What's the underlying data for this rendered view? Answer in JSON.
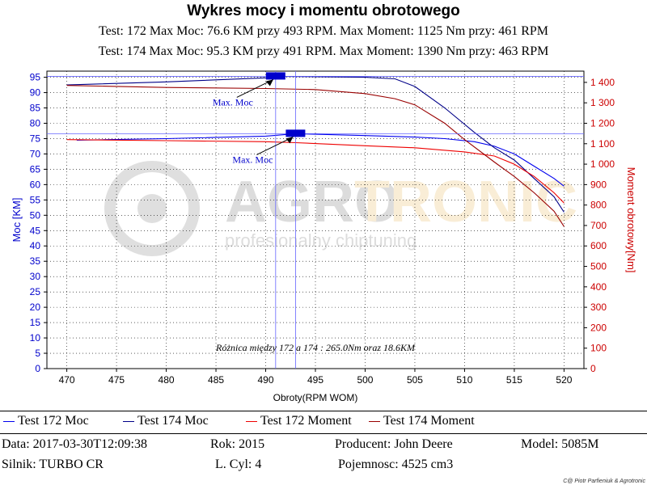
{
  "title": "Wykres mocy i momentu obrotowego",
  "subtitle1": "Test: 172 Max Moc: 76.6 KM przy 493 RPM. Max Moment: 1125 Nm przy: 461 RPM",
  "subtitle2": "Test: 174 Max Moc: 95.3 KM przy 491 RPM. Max Moment: 1390 Nm przy: 463 RPM",
  "watermark": {
    "brand_left": "AGRO",
    "brand_right": "TRONIC",
    "tagline": "profesionalny  chiptuning"
  },
  "colors": {
    "moc_172": "#0000ee",
    "moc_174": "#000088",
    "moment_172": "#ee0000",
    "moment_174": "#990000",
    "marker": "#0000cc"
  },
  "chart_data": {
    "type": "line",
    "xlabel": "Obroty(RPM WOM)",
    "ylabel": "Moc [KM]",
    "y2label": "Moment obrotowy[Nm]",
    "xlim": [
      468,
      522
    ],
    "ylim": [
      0,
      97
    ],
    "y2lim": [
      0,
      1455
    ],
    "x_ticks": [
      470,
      475,
      480,
      485,
      490,
      495,
      500,
      505,
      510,
      515,
      520
    ],
    "y_ticks": [
      0,
      5,
      10,
      15,
      20,
      25,
      30,
      35,
      40,
      45,
      50,
      55,
      60,
      65,
      70,
      75,
      80,
      85,
      90,
      95
    ],
    "y2_ticks": [
      0,
      100,
      200,
      300,
      400,
      500,
      600,
      700,
      800,
      900,
      1000,
      1100,
      1200,
      1300,
      1400
    ],
    "y2_tick_labels": [
      "0",
      "100",
      "200",
      "300",
      "400",
      "500",
      "600",
      "700",
      "800",
      "900",
      "1 000",
      "1 100",
      "1 200",
      "1 300",
      "1 400"
    ],
    "grid": true,
    "series": [
      {
        "name": "Test 172 Moc",
        "axis": "left",
        "x": [
          471,
          480,
          490,
          493,
          500,
          505,
          508,
          511,
          513,
          515,
          517,
          519,
          520
        ],
        "y": [
          74.5,
          75.0,
          75.8,
          76.6,
          76.0,
          75.5,
          75.0,
          74.0,
          72.5,
          70.0,
          66.0,
          62.0,
          59.5
        ]
      },
      {
        "name": "Test 174 Moc",
        "axis": "left",
        "x": [
          470,
          480,
          490,
          491,
          500,
          503,
          505,
          508,
          511,
          513,
          515,
          517,
          519,
          520
        ],
        "y": [
          92.5,
          93.5,
          94.8,
          95.3,
          95.0,
          94.5,
          92.0,
          85.0,
          77.0,
          72.0,
          68.0,
          62.0,
          56.0,
          51.0
        ]
      },
      {
        "name": "Test 172 Moment",
        "axis": "right",
        "x": [
          470,
          480,
          490,
          493,
          500,
          505,
          510,
          513,
          515,
          517,
          519,
          520
        ],
        "y": [
          1120,
          1115,
          1110,
          1105,
          1090,
          1080,
          1060,
          1040,
          1000,
          940,
          860,
          810
        ]
      },
      {
        "name": "Test 174 Moment",
        "axis": "right",
        "x": [
          470,
          480,
          490,
          495,
          500,
          503,
          505,
          508,
          510,
          513,
          515,
          517,
          519,
          520
        ],
        "y": [
          1385,
          1375,
          1370,
          1365,
          1345,
          1320,
          1290,
          1200,
          1120,
          1010,
          940,
          860,
          770,
          695
        ]
      }
    ],
    "markers": [
      {
        "label": "Max. Moc",
        "x": 491,
        "y": 95.3
      },
      {
        "label": "Max. Moc",
        "x": 493,
        "y": 76.6
      }
    ],
    "annotation": "Różnica między 172 a 174 : 265.0Nm oraz 18.6KM"
  },
  "legend": [
    {
      "label": "Test 172 Moc",
      "color": "#0000ee"
    },
    {
      "label": "Test 174 Moc",
      "color": "#000088"
    },
    {
      "label": "Test 172 Moment",
      "color": "#ee0000"
    },
    {
      "label": "Test 174 Moment",
      "color": "#990000"
    }
  ],
  "info": {
    "data": "Data: 2017-03-30T12:09:38",
    "rok": "Rok: 2015",
    "producent": "Producent: John Deere",
    "model": "Model: 5085M",
    "silnik": "Silnik: TURBO CR",
    "cyl": "L. Cyl: 4",
    "pojemnosc": "Pojemnosc: 4525 cm3"
  },
  "copyright": "C@ Piotr Parfieniuk & Agrotronic"
}
